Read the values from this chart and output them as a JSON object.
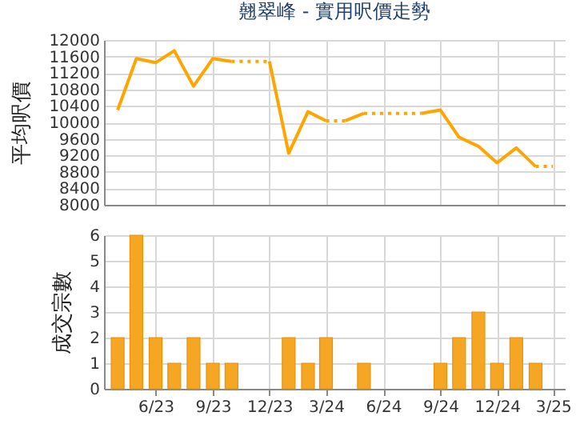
{
  "chart_data": [
    {
      "type": "line",
      "title": "翹翠峰 - 實用呎價走勢",
      "ylabel": "平均呎價",
      "ylim": [
        8000,
        12000
      ],
      "yticks": [
        8000,
        8400,
        8800,
        9200,
        9600,
        10000,
        10400,
        10800,
        11200,
        11600,
        12000
      ],
      "xlim": [
        "2023-03-10",
        "2025-03-20"
      ],
      "xticks": [
        {
          "value": "2023-06",
          "label": null
        },
        {
          "value": "2023-09",
          "label": null
        },
        {
          "value": "2023-12",
          "label": null
        },
        {
          "value": "2024-03",
          "label": null
        },
        {
          "value": "2024-06",
          "label": null
        },
        {
          "value": "2024-09",
          "label": null
        },
        {
          "value": "2024-12",
          "label": null
        },
        {
          "value": "2025-03",
          "label": null
        }
      ],
      "grid": true,
      "tick_labels": "y",
      "marker": "none",
      "series": [
        {
          "color": "#ffa500",
          "line_style": "solid",
          "x": [
            "2023-04",
            "2023-05",
            "2023-06",
            "2023-07",
            "2023-08",
            "2023-09",
            "2023-10"
          ],
          "values": [
            10300,
            11550,
            11450,
            11740,
            10880,
            11550,
            11480
          ]
        },
        {
          "color": "#ffa500",
          "line_style": "dotted",
          "x": [
            "2023-10",
            "2023-11",
            "2023-12"
          ],
          "values": [
            11480,
            11480,
            11480
          ]
        },
        {
          "color": "#ffa500",
          "line_style": "solid",
          "x": [
            "2023-12",
            "2024-01",
            "2024-02",
            "2024-03"
          ],
          "values": [
            11480,
            9250,
            10260,
            10040
          ]
        },
        {
          "color": "#ffa500",
          "line_style": "dotted",
          "x": [
            "2024-03",
            "2024-04"
          ],
          "values": [
            10040,
            10040
          ]
        },
        {
          "color": "#ffa500",
          "line_style": "solid",
          "x": [
            "2024-04",
            "2024-05"
          ],
          "values": [
            10040,
            10220
          ]
        },
        {
          "color": "#ffa500",
          "line_style": "dotted",
          "x": [
            "2024-05",
            "2024-06",
            "2024-07",
            "2024-08"
          ],
          "values": [
            10220,
            10220,
            10220,
            10220
          ]
        },
        {
          "color": "#ffa500",
          "line_style": "solid",
          "x": [
            "2024-08",
            "2024-09",
            "2024-10",
            "2024-11",
            "2024-12",
            "2025-01",
            "2025-02"
          ],
          "values": [
            10220,
            10300,
            9640,
            9420,
            9020,
            9380,
            8930
          ]
        },
        {
          "color": "#ffa500",
          "line_style": "dotted",
          "x": [
            "2025-02",
            "2025-03"
          ],
          "values": [
            8930,
            8930
          ]
        }
      ]
    },
    {
      "type": "bar",
      "ylabel": "成交宗數",
      "ylim": [
        0,
        6
      ],
      "yticks": [
        0,
        1,
        2,
        3,
        4,
        5,
        6
      ],
      "xlim": [
        "2023-03-10",
        "2025-03-20"
      ],
      "xticks": [
        {
          "value": "2023-06",
          "label": "6/23"
        },
        {
          "value": "2023-09",
          "label": "9/23"
        },
        {
          "value": "2023-12",
          "label": "12/23"
        },
        {
          "value": "2024-03",
          "label": "3/24"
        },
        {
          "value": "2024-06",
          "label": "6/24"
        },
        {
          "value": "2024-09",
          "label": "9/24"
        },
        {
          "value": "2024-12",
          "label": "12/24"
        },
        {
          "value": "2025-03",
          "label": "3/25"
        }
      ],
      "grid": true,
      "x": [
        "2023-04",
        "2023-05",
        "2023-06",
        "2023-07",
        "2023-08",
        "2023-09",
        "2023-10",
        "2024-01",
        "2024-02",
        "2024-03",
        "2024-05",
        "2024-09",
        "2024-10",
        "2024-11",
        "2024-12",
        "2025-01",
        "2025-02"
      ],
      "series": [
        {
          "color": "#f5a623",
          "values": [
            2,
            6,
            2,
            1,
            2,
            1,
            1,
            2,
            1,
            2,
            1,
            1,
            2,
            3,
            1,
            2,
            1
          ]
        }
      ]
    }
  ]
}
